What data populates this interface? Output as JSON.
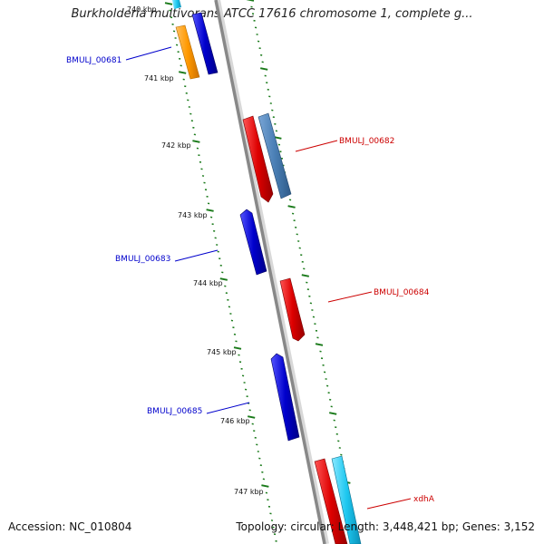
{
  "title": "Burkholderia multivorans ATCC 17616 chromosome 1, complete g...",
  "footer": {
    "accession": "Accession: NC_010804",
    "summary": "Topology: circular; Length: 3,448,421 bp; Genes: 3,152"
  },
  "kbp_labels": [
    "740 kbp",
    "741 kbp",
    "742 kbp",
    "743 kbp",
    "744 kbp",
    "745 kbp",
    "746 kbp",
    "747 kbp"
  ],
  "gene_labels": {
    "g681": "BMULJ_00681",
    "g682": "BMULJ_00682",
    "g683": "BMULJ_00683",
    "g684": "BMULJ_00684",
    "g685": "BMULJ_00685",
    "xdhA": "xdhA"
  },
  "colors": {
    "reverse_strand": "#0000cc",
    "forward_strand": "#cc0000",
    "tick": "#1a7a1a",
    "orange_feature": "#ff9900",
    "steel_feature": "#4a7fb5",
    "cyan_feature": "#1ec8f0"
  }
}
